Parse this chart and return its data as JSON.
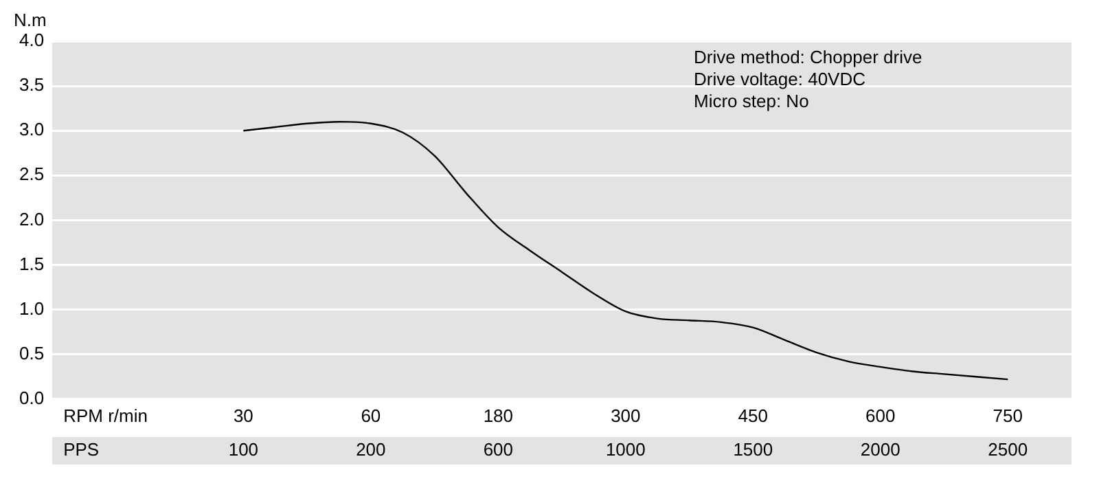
{
  "chart_data": {
    "type": "line",
    "ylabel": "N.m",
    "xlabel": "RPM r/min",
    "x2label": "PPS",
    "categories": [
      null,
      null,
      null,
      null,
      null,
      null,
      "30",
      null,
      null,
      null,
      "60",
      null,
      null,
      null,
      "180",
      null,
      null,
      null,
      "300",
      null,
      null,
      null,
      "450",
      null,
      null,
      null,
      "600",
      null,
      null,
      null,
      "750",
      null,
      null
    ],
    "series": [
      {
        "color": "#000000",
        "values": [
          null,
          null,
          null,
          null,
          null,
          null,
          3.0,
          3.04,
          3.08,
          3.1,
          3.08,
          2.98,
          2.72,
          2.3,
          1.92,
          1.66,
          1.42,
          1.18,
          0.98,
          0.9,
          0.88,
          0.86,
          0.8,
          0.66,
          0.52,
          0.42,
          0.36,
          0.31,
          0.28,
          0.25,
          0.22,
          null,
          null
        ]
      }
    ],
    "ylim": [
      0,
      4
    ],
    "yticks": [
      {
        "value": 0,
        "label": "0.0"
      },
      0.5,
      {
        "value": 1,
        "label": "1.0"
      },
      1.5,
      {
        "value": 2,
        "label": "2.0"
      },
      2.5,
      {
        "value": 3,
        "label": "3.0"
      },
      3.5,
      {
        "value": 4,
        "label": "4.0"
      }
    ],
    "grid": "y",
    "legend": false,
    "marker": "none",
    "line_style": "solid",
    "annotations": [
      "Drive method: Chopper drive",
      "Drive voltage: 40VDC",
      "Micro step: No",
      "100",
      "200",
      "600",
      "1000",
      "1500",
      "2000",
      "2500"
    ]
  }
}
